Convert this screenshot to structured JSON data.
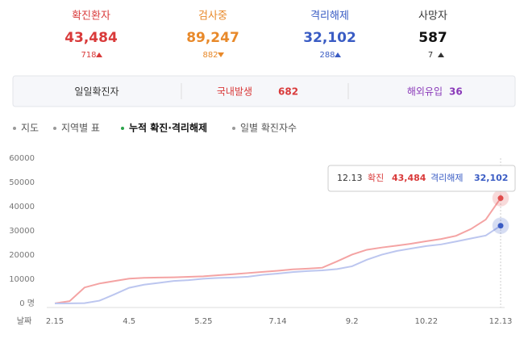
{
  "stats": [
    {
      "label": "확진환자",
      "value": "43,484",
      "change": "718",
      "trend": "up",
      "color": "#d93a3a"
    },
    {
      "label": "검사중",
      "value": "89,247",
      "change": "882",
      "trend": "down",
      "color": "#e8892a"
    },
    {
      "label": "격리해제",
      "value": "32,102",
      "change": "288",
      "trend": "up",
      "color": "#3a5cc4"
    },
    {
      "label": "사망자",
      "value": "587",
      "change": "7",
      "trend": "up",
      "color": "#111111"
    }
  ],
  "daily": {
    "title": "일일확진자",
    "domestic_label": "국내발생",
    "domestic": "682",
    "overseas_label": "해외유입",
    "overseas": "36"
  },
  "tabs": [
    {
      "label": "지도",
      "active": false
    },
    {
      "label": "지역별 표",
      "active": false
    },
    {
      "label": "누적 확진·격리해제",
      "active": true
    },
    {
      "label": "일별 확진자수",
      "active": false
    }
  ],
  "chart_data": {
    "type": "line",
    "x_label": "날짜",
    "categories": [
      "2.15",
      null,
      null,
      null,
      null,
      "4.5",
      null,
      null,
      null,
      null,
      "5.25",
      null,
      null,
      null,
      null,
      "7.14",
      null,
      null,
      null,
      null,
      "9.2",
      null,
      null,
      null,
      null,
      "10.22",
      null,
      null,
      null,
      null,
      "12.13"
    ],
    "series": [
      {
        "name": "확진",
        "color": "#f4a3a3",
        "dot": "#e04b4b",
        "values": [
          28,
          977,
          6593,
          8236,
          9241,
          10237,
          10591,
          10718,
          10806,
          10991,
          11206,
          11668,
          12085,
          12563,
          13030,
          13512,
          14092,
          14389,
          14770,
          17399,
          20182,
          22176,
          23106,
          23889,
          24703,
          25698,
          26635,
          27942,
          30733,
          34652,
          43484
        ]
      },
      {
        "name": "격리해제",
        "color": "#bcc6ef",
        "dot": "#3a5cc4",
        "values": [
          10,
          30,
          135,
          1137,
          3730,
          6463,
          7757,
          8501,
          9283,
          9632,
          10226,
          10531,
          10718,
          11037,
          11848,
          12348,
          12959,
          13364,
          13669,
          14219,
          15356,
          18062,
          20158,
          21666,
          22698,
          23692,
          24395,
          25570,
          26825,
          28065,
          32102
        ]
      }
    ],
    "ylim": [
      0,
      60000
    ],
    "yticks": [
      {
        "value": 0,
        "label": "0 명"
      },
      10000,
      20000,
      30000,
      40000,
      50000,
      60000
    ],
    "tooltip": {
      "date": "12.13",
      "confirmed": "43,484",
      "released": "32,102"
    }
  }
}
